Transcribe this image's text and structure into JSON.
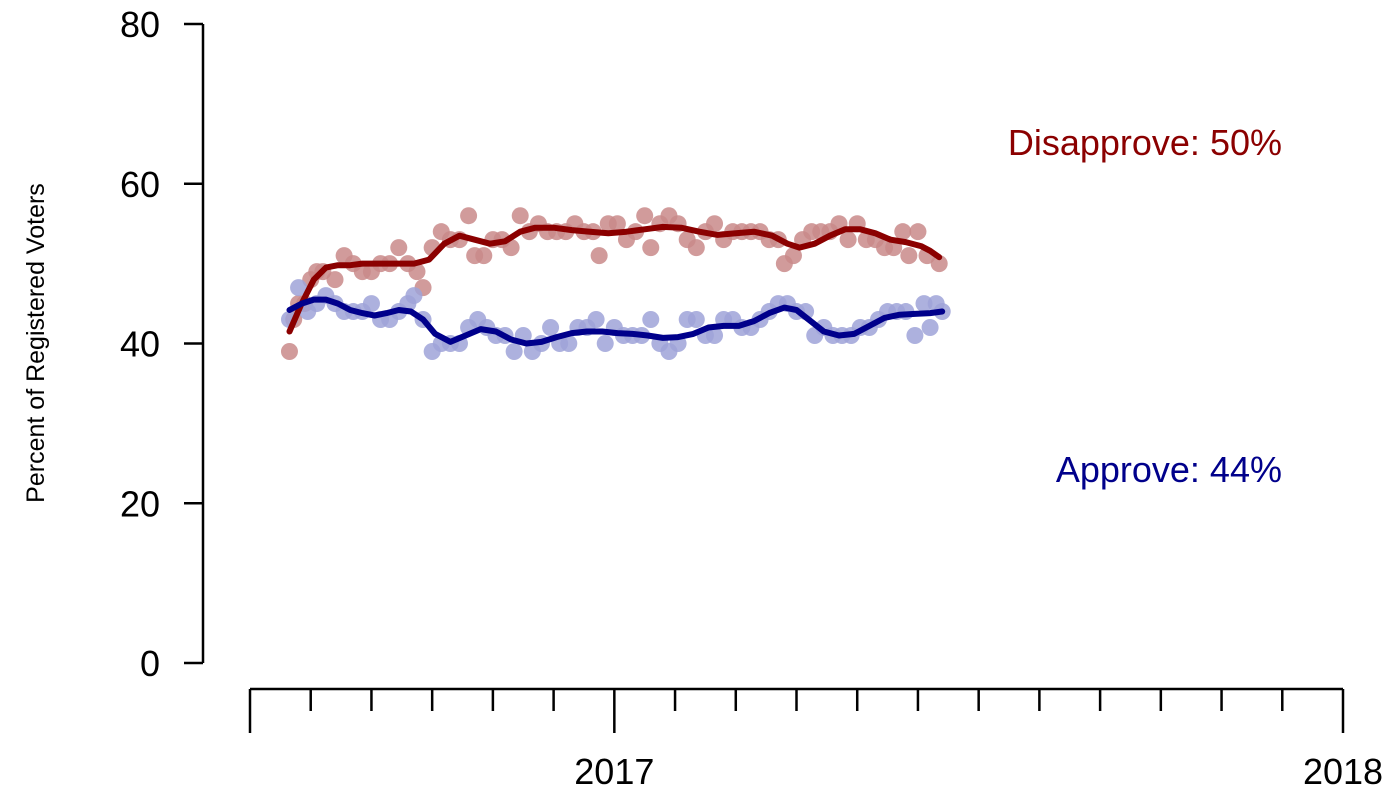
{
  "chart_data": {
    "type": "scatter",
    "ylabel": "Percent of Registered Voters",
    "ylim": [
      0,
      80
    ],
    "yticks": [
      "0",
      "20",
      "40",
      "60",
      "80"
    ],
    "xlim": [
      0,
      18
    ],
    "xtick_labels": [
      {
        "x": 6,
        "label": "2017"
      },
      {
        "x": 18,
        "label": "2018"
      }
    ],
    "colors": {
      "disapprove_line": "#8B0000",
      "disapprove_points": "#C98989",
      "approve_line": "#00008B",
      "approve_points": "#9FA3D8"
    },
    "annotations": {
      "disapprove": "Disapprove: 50%",
      "approve": "Approve: 44%"
    },
    "series": [
      {
        "key": "disapprove",
        "points": [
          [
            0.65,
            39
          ],
          [
            0.72,
            43
          ],
          [
            0.8,
            45
          ],
          [
            0.9,
            45
          ],
          [
            1.0,
            48
          ],
          [
            1.1,
            49
          ],
          [
            1.2,
            49
          ],
          [
            1.4,
            48
          ],
          [
            1.55,
            51
          ],
          [
            1.7,
            50
          ],
          [
            1.85,
            49
          ],
          [
            2.0,
            49
          ],
          [
            2.15,
            50
          ],
          [
            2.3,
            50
          ],
          [
            2.45,
            52
          ],
          [
            2.6,
            50
          ],
          [
            2.75,
            49
          ],
          [
            2.85,
            47
          ],
          [
            3.0,
            52
          ],
          [
            3.15,
            54
          ],
          [
            3.3,
            53
          ],
          [
            3.45,
            53
          ],
          [
            3.6,
            56
          ],
          [
            3.7,
            51
          ],
          [
            3.85,
            51
          ],
          [
            4.0,
            53
          ],
          [
            4.15,
            53
          ],
          [
            4.3,
            52
          ],
          [
            4.45,
            56
          ],
          [
            4.6,
            54
          ],
          [
            4.75,
            55
          ],
          [
            4.9,
            54
          ],
          [
            5.05,
            54
          ],
          [
            5.2,
            54
          ],
          [
            5.35,
            55
          ],
          [
            5.5,
            54
          ],
          [
            5.65,
            54
          ],
          [
            5.75,
            51
          ],
          [
            5.9,
            55
          ],
          [
            6.05,
            55
          ],
          [
            6.2,
            53
          ],
          [
            6.35,
            54
          ],
          [
            6.5,
            56
          ],
          [
            6.6,
            52
          ],
          [
            6.75,
            55
          ],
          [
            6.9,
            56
          ],
          [
            7.05,
            55
          ],
          [
            7.2,
            53
          ],
          [
            7.35,
            52
          ],
          [
            7.5,
            54
          ],
          [
            7.65,
            55
          ],
          [
            7.8,
            53
          ],
          [
            7.95,
            54
          ],
          [
            8.1,
            54
          ],
          [
            8.25,
            54
          ],
          [
            8.4,
            54
          ],
          [
            8.55,
            53
          ],
          [
            8.7,
            53
          ],
          [
            8.8,
            50
          ],
          [
            8.95,
            51
          ],
          [
            9.1,
            53
          ],
          [
            9.25,
            54
          ],
          [
            9.4,
            54
          ],
          [
            9.55,
            54
          ],
          [
            9.7,
            55
          ],
          [
            9.85,
            53
          ],
          [
            10.0,
            55
          ],
          [
            10.15,
            53
          ],
          [
            10.3,
            53
          ],
          [
            10.45,
            52
          ],
          [
            10.6,
            52
          ],
          [
            10.75,
            54
          ],
          [
            10.85,
            51
          ],
          [
            11.0,
            54
          ],
          [
            11.15,
            51
          ],
          [
            11.35,
            50
          ]
        ],
        "line": [
          [
            0.65,
            41.5
          ],
          [
            0.85,
            45
          ],
          [
            1.05,
            48
          ],
          [
            1.25,
            49.5
          ],
          [
            1.45,
            49.8
          ],
          [
            1.65,
            49.8
          ],
          [
            1.85,
            50
          ],
          [
            2.1,
            50
          ],
          [
            2.4,
            50
          ],
          [
            2.7,
            50
          ],
          [
            2.95,
            50.5
          ],
          [
            3.2,
            52.5
          ],
          [
            3.45,
            53.5
          ],
          [
            3.7,
            53
          ],
          [
            3.95,
            52.5
          ],
          [
            4.2,
            52.8
          ],
          [
            4.45,
            54
          ],
          [
            4.7,
            54.5
          ],
          [
            5.0,
            54.5
          ],
          [
            5.3,
            54.2
          ],
          [
            5.6,
            54
          ],
          [
            5.9,
            53.8
          ],
          [
            6.2,
            54
          ],
          [
            6.5,
            54.3
          ],
          [
            6.8,
            54.6
          ],
          [
            7.1,
            54.5
          ],
          [
            7.4,
            54
          ],
          [
            7.7,
            53.6
          ],
          [
            8.0,
            53.8
          ],
          [
            8.3,
            54
          ],
          [
            8.6,
            53.5
          ],
          [
            8.85,
            52.5
          ],
          [
            9.05,
            52
          ],
          [
            9.3,
            52.5
          ],
          [
            9.55,
            53.5
          ],
          [
            9.8,
            54.3
          ],
          [
            10.05,
            54.3
          ],
          [
            10.3,
            53.8
          ],
          [
            10.55,
            53
          ],
          [
            10.8,
            52.7
          ],
          [
            11.05,
            52.2
          ],
          [
            11.2,
            51.6
          ],
          [
            11.35,
            50.8
          ]
        ]
      },
      {
        "key": "approve",
        "points": [
          [
            0.65,
            43
          ],
          [
            0.8,
            47
          ],
          [
            0.95,
            44
          ],
          [
            1.1,
            45
          ],
          [
            1.25,
            46
          ],
          [
            1.4,
            45
          ],
          [
            1.55,
            44
          ],
          [
            1.7,
            44
          ],
          [
            1.85,
            44
          ],
          [
            2.0,
            45
          ],
          [
            2.15,
            43
          ],
          [
            2.3,
            43
          ],
          [
            2.45,
            44
          ],
          [
            2.6,
            45
          ],
          [
            2.7,
            46
          ],
          [
            2.85,
            43
          ],
          [
            3.0,
            39
          ],
          [
            3.15,
            40
          ],
          [
            3.3,
            40
          ],
          [
            3.45,
            40
          ],
          [
            3.6,
            42
          ],
          [
            3.75,
            43
          ],
          [
            3.9,
            42
          ],
          [
            4.05,
            41
          ],
          [
            4.2,
            41
          ],
          [
            4.35,
            39
          ],
          [
            4.5,
            41
          ],
          [
            4.65,
            39
          ],
          [
            4.8,
            40
          ],
          [
            4.95,
            42
          ],
          [
            5.1,
            40
          ],
          [
            5.25,
            40
          ],
          [
            5.4,
            42
          ],
          [
            5.55,
            42
          ],
          [
            5.7,
            43
          ],
          [
            5.85,
            40
          ],
          [
            6.0,
            42
          ],
          [
            6.15,
            41
          ],
          [
            6.3,
            41
          ],
          [
            6.45,
            41
          ],
          [
            6.6,
            43
          ],
          [
            6.75,
            40
          ],
          [
            6.9,
            39
          ],
          [
            7.05,
            40
          ],
          [
            7.2,
            43
          ],
          [
            7.35,
            43
          ],
          [
            7.5,
            41
          ],
          [
            7.65,
            41
          ],
          [
            7.8,
            43
          ],
          [
            7.95,
            43
          ],
          [
            8.1,
            42
          ],
          [
            8.25,
            42
          ],
          [
            8.4,
            43
          ],
          [
            8.55,
            44
          ],
          [
            8.7,
            45
          ],
          [
            8.85,
            45
          ],
          [
            9.0,
            44
          ],
          [
            9.15,
            44
          ],
          [
            9.3,
            41
          ],
          [
            9.45,
            42
          ],
          [
            9.6,
            41
          ],
          [
            9.75,
            41
          ],
          [
            9.9,
            41
          ],
          [
            10.05,
            42
          ],
          [
            10.2,
            42
          ],
          [
            10.35,
            43
          ],
          [
            10.5,
            44
          ],
          [
            10.65,
            44
          ],
          [
            10.8,
            44
          ],
          [
            10.95,
            41
          ],
          [
            11.1,
            45
          ],
          [
            11.2,
            42
          ],
          [
            11.3,
            45
          ],
          [
            11.4,
            44
          ]
        ],
        "line": [
          [
            0.65,
            44.2
          ],
          [
            0.85,
            45
          ],
          [
            1.05,
            45.5
          ],
          [
            1.25,
            45.5
          ],
          [
            1.45,
            45
          ],
          [
            1.65,
            44.2
          ],
          [
            1.85,
            43.8
          ],
          [
            2.05,
            43.5
          ],
          [
            2.25,
            43.8
          ],
          [
            2.45,
            44.2
          ],
          [
            2.65,
            44
          ],
          [
            2.85,
            43
          ],
          [
            3.05,
            41.2
          ],
          [
            3.3,
            40.2
          ],
          [
            3.55,
            41
          ],
          [
            3.8,
            41.8
          ],
          [
            4.05,
            41.5
          ],
          [
            4.3,
            40.5
          ],
          [
            4.55,
            40
          ],
          [
            4.8,
            40.2
          ],
          [
            5.05,
            40.8
          ],
          [
            5.3,
            41.3
          ],
          [
            5.55,
            41.5
          ],
          [
            5.8,
            41.5
          ],
          [
            6.05,
            41.3
          ],
          [
            6.3,
            41.2
          ],
          [
            6.55,
            41
          ],
          [
            6.8,
            40.7
          ],
          [
            7.05,
            40.8
          ],
          [
            7.3,
            41.2
          ],
          [
            7.55,
            42
          ],
          [
            7.8,
            42.2
          ],
          [
            8.05,
            42.2
          ],
          [
            8.3,
            42.8
          ],
          [
            8.55,
            43.8
          ],
          [
            8.8,
            44.5
          ],
          [
            9.0,
            44.2
          ],
          [
            9.2,
            43
          ],
          [
            9.45,
            41.5
          ],
          [
            9.7,
            41
          ],
          [
            9.95,
            41.2
          ],
          [
            10.2,
            42.2
          ],
          [
            10.45,
            43.2
          ],
          [
            10.7,
            43.6
          ],
          [
            10.95,
            43.7
          ],
          [
            11.2,
            43.8
          ],
          [
            11.4,
            44
          ]
        ]
      }
    ]
  }
}
